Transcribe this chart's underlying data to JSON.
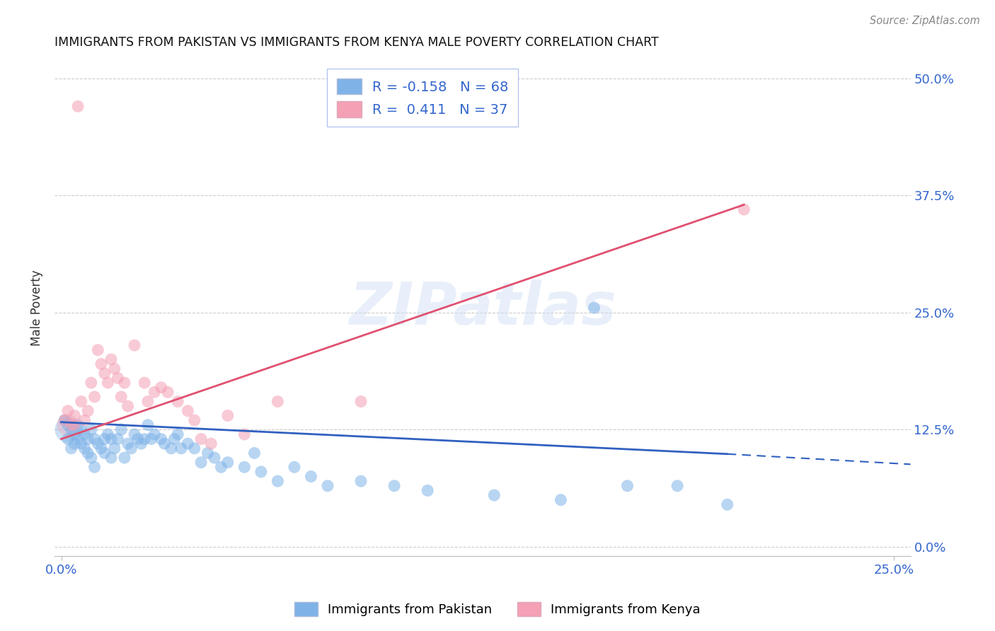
{
  "title": "IMMIGRANTS FROM PAKISTAN VS IMMIGRANTS FROM KENYA MALE POVERTY CORRELATION CHART",
  "source": "Source: ZipAtlas.com",
  "ylabel": "Male Poverty",
  "xlim": [
    -0.002,
    0.255
  ],
  "ylim": [
    -0.01,
    0.52
  ],
  "xticks": [
    0.0,
    0.25
  ],
  "xtick_labels": [
    "0.0%",
    "25.0%"
  ],
  "yticks": [
    0.0,
    0.125,
    0.25,
    0.375,
    0.5
  ],
  "ytick_labels": [
    "0.0%",
    "12.5%",
    "25.0%",
    "37.5%",
    "50.0%"
  ],
  "grid_color": "#cccccc",
  "background_color": "#ffffff",
  "watermark": "ZIPatlas",
  "pakistan_color": "#7fb3e8",
  "kenya_color": "#f4a0b5",
  "pakistan_line_color": "#3060c0",
  "kenya_line_color": "#e05070",
  "legend_R_pakistan": "R = -0.158",
  "legend_N_pakistan": "N = 68",
  "legend_R_kenya": "R =  0.411",
  "legend_N_kenya": "N = 37",
  "pak_line_x0": 0.0,
  "pak_line_y0": 0.133,
  "pak_line_x1": 0.2,
  "pak_line_y1": 0.099,
  "pak_line_dash_x1": 0.255,
  "pak_line_dash_y1": 0.088,
  "ken_line_x0": 0.0,
  "ken_line_y0": 0.115,
  "ken_line_x1": 0.205,
  "ken_line_y1": 0.365,
  "pakistan_points": [
    [
      0.001,
      0.135
    ],
    [
      0.002,
      0.13
    ],
    [
      0.002,
      0.115
    ],
    [
      0.003,
      0.125
    ],
    [
      0.003,
      0.105
    ],
    [
      0.004,
      0.12
    ],
    [
      0.004,
      0.11
    ],
    [
      0.005,
      0.13
    ],
    [
      0.005,
      0.115
    ],
    [
      0.006,
      0.125
    ],
    [
      0.006,
      0.11
    ],
    [
      0.007,
      0.12
    ],
    [
      0.007,
      0.105
    ],
    [
      0.008,
      0.115
    ],
    [
      0.008,
      0.1
    ],
    [
      0.009,
      0.125
    ],
    [
      0.009,
      0.095
    ],
    [
      0.01,
      0.115
    ],
    [
      0.01,
      0.085
    ],
    [
      0.011,
      0.11
    ],
    [
      0.012,
      0.105
    ],
    [
      0.013,
      0.115
    ],
    [
      0.013,
      0.1
    ],
    [
      0.014,
      0.12
    ],
    [
      0.015,
      0.115
    ],
    [
      0.015,
      0.095
    ],
    [
      0.016,
      0.105
    ],
    [
      0.017,
      0.115
    ],
    [
      0.018,
      0.125
    ],
    [
      0.019,
      0.095
    ],
    [
      0.02,
      0.11
    ],
    [
      0.021,
      0.105
    ],
    [
      0.022,
      0.12
    ],
    [
      0.023,
      0.115
    ],
    [
      0.024,
      0.11
    ],
    [
      0.025,
      0.115
    ],
    [
      0.026,
      0.13
    ],
    [
      0.027,
      0.115
    ],
    [
      0.028,
      0.12
    ],
    [
      0.03,
      0.115
    ],
    [
      0.031,
      0.11
    ],
    [
      0.033,
      0.105
    ],
    [
      0.034,
      0.115
    ],
    [
      0.035,
      0.12
    ],
    [
      0.036,
      0.105
    ],
    [
      0.038,
      0.11
    ],
    [
      0.04,
      0.105
    ],
    [
      0.042,
      0.09
    ],
    [
      0.044,
      0.1
    ],
    [
      0.046,
      0.095
    ],
    [
      0.048,
      0.085
    ],
    [
      0.05,
      0.09
    ],
    [
      0.055,
      0.085
    ],
    [
      0.058,
      0.1
    ],
    [
      0.06,
      0.08
    ],
    [
      0.065,
      0.07
    ],
    [
      0.07,
      0.085
    ],
    [
      0.075,
      0.075
    ],
    [
      0.08,
      0.065
    ],
    [
      0.09,
      0.07
    ],
    [
      0.1,
      0.065
    ],
    [
      0.11,
      0.06
    ],
    [
      0.13,
      0.055
    ],
    [
      0.15,
      0.05
    ],
    [
      0.16,
      0.255
    ],
    [
      0.17,
      0.065
    ],
    [
      0.185,
      0.065
    ],
    [
      0.2,
      0.045
    ]
  ],
  "kenya_points": [
    [
      0.001,
      0.135
    ],
    [
      0.002,
      0.145
    ],
    [
      0.003,
      0.13
    ],
    [
      0.004,
      0.14
    ],
    [
      0.004,
      0.13
    ],
    [
      0.005,
      0.47
    ],
    [
      0.006,
      0.155
    ],
    [
      0.007,
      0.135
    ],
    [
      0.008,
      0.145
    ],
    [
      0.009,
      0.175
    ],
    [
      0.01,
      0.16
    ],
    [
      0.011,
      0.21
    ],
    [
      0.012,
      0.195
    ],
    [
      0.013,
      0.185
    ],
    [
      0.014,
      0.175
    ],
    [
      0.015,
      0.2
    ],
    [
      0.016,
      0.19
    ],
    [
      0.017,
      0.18
    ],
    [
      0.018,
      0.16
    ],
    [
      0.019,
      0.175
    ],
    [
      0.02,
      0.15
    ],
    [
      0.022,
      0.215
    ],
    [
      0.025,
      0.175
    ],
    [
      0.026,
      0.155
    ],
    [
      0.028,
      0.165
    ],
    [
      0.03,
      0.17
    ],
    [
      0.032,
      0.165
    ],
    [
      0.035,
      0.155
    ],
    [
      0.038,
      0.145
    ],
    [
      0.04,
      0.135
    ],
    [
      0.042,
      0.115
    ],
    [
      0.045,
      0.11
    ],
    [
      0.05,
      0.14
    ],
    [
      0.055,
      0.12
    ],
    [
      0.065,
      0.155
    ],
    [
      0.09,
      0.155
    ],
    [
      0.205,
      0.36
    ]
  ]
}
